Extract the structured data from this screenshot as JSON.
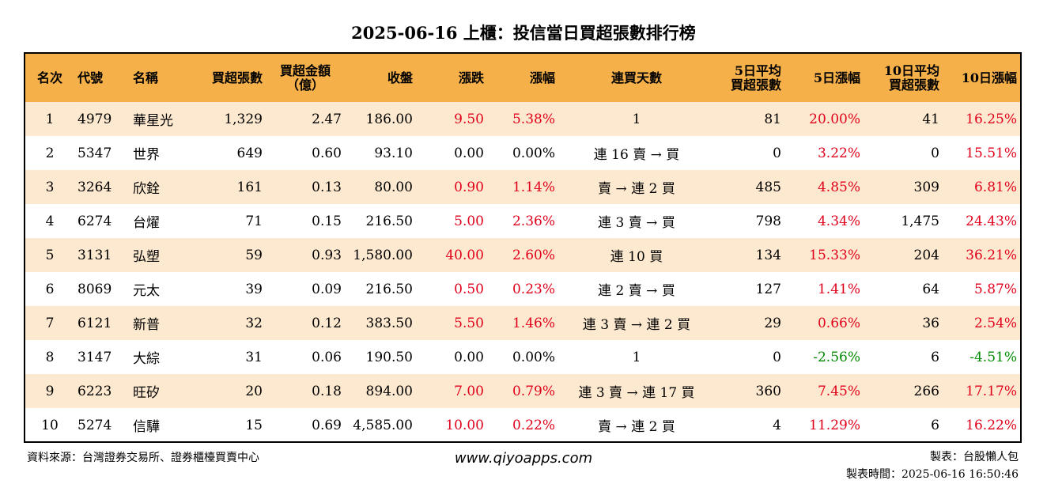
{
  "title": "2025-06-16 上櫃：投信當日買超張數排行榜",
  "headers": {
    "rank": "名次",
    "code": "代號",
    "name": "名稱",
    "volume": "買超張數",
    "amount_l1": "買超金額",
    "amount_l2": "（億）",
    "close": "收盤",
    "change": "漲跌",
    "pct": "漲幅",
    "days": "連買天數",
    "avg5_l1": "5日平均",
    "avg5_l2": "買超張數",
    "pct5": "5日漲幅",
    "avg10_l1": "10日平均",
    "avg10_l2": "買超張數",
    "pct10": "10日漲幅"
  },
  "rows": [
    {
      "rank": "1",
      "code": "4979",
      "name": "華星光",
      "volume": "1,329",
      "amount": "2.47",
      "close": "186.00",
      "change": "9.50",
      "pct": "5.38%",
      "days": "1",
      "avg5": "81",
      "pct5": "20.00%",
      "avg10": "41",
      "pct10": "16.25%",
      "c_change": "red",
      "c_pct": "red",
      "c_pct5": "red",
      "c_pct10": "red"
    },
    {
      "rank": "2",
      "code": "5347",
      "name": "世界",
      "volume": "649",
      "amount": "0.60",
      "close": "93.10",
      "change": "0.00",
      "pct": "0.00%",
      "days": "連 16 賣 → 買",
      "avg5": "0",
      "pct5": "3.22%",
      "avg10": "0",
      "pct10": "15.51%",
      "c_change": "black",
      "c_pct": "black",
      "c_pct5": "red",
      "c_pct10": "red"
    },
    {
      "rank": "3",
      "code": "3264",
      "name": "欣銓",
      "volume": "161",
      "amount": "0.13",
      "close": "80.00",
      "change": "0.90",
      "pct": "1.14%",
      "days": "賣 → 連 2 買",
      "avg5": "485",
      "pct5": "4.85%",
      "avg10": "309",
      "pct10": "6.81%",
      "c_change": "red",
      "c_pct": "red",
      "c_pct5": "red",
      "c_pct10": "red"
    },
    {
      "rank": "4",
      "code": "6274",
      "name": "台燿",
      "volume": "71",
      "amount": "0.15",
      "close": "216.50",
      "change": "5.00",
      "pct": "2.36%",
      "days": "連 3 賣 → 買",
      "avg5": "798",
      "pct5": "4.34%",
      "avg10": "1,475",
      "pct10": "24.43%",
      "c_change": "red",
      "c_pct": "red",
      "c_pct5": "red",
      "c_pct10": "red"
    },
    {
      "rank": "5",
      "code": "3131",
      "name": "弘塑",
      "volume": "59",
      "amount": "0.93",
      "close": "1,580.00",
      "change": "40.00",
      "pct": "2.60%",
      "days": "連 10 買",
      "avg5": "134",
      "pct5": "15.33%",
      "avg10": "204",
      "pct10": "36.21%",
      "c_change": "red",
      "c_pct": "red",
      "c_pct5": "red",
      "c_pct10": "red"
    },
    {
      "rank": "6",
      "code": "8069",
      "name": "元太",
      "volume": "39",
      "amount": "0.09",
      "close": "216.50",
      "change": "0.50",
      "pct": "0.23%",
      "days": "連 2 賣 → 買",
      "avg5": "127",
      "pct5": "1.41%",
      "avg10": "64",
      "pct10": "5.87%",
      "c_change": "red",
      "c_pct": "red",
      "c_pct5": "red",
      "c_pct10": "red"
    },
    {
      "rank": "7",
      "code": "6121",
      "name": "新普",
      "volume": "32",
      "amount": "0.12",
      "close": "383.50",
      "change": "5.50",
      "pct": "1.46%",
      "days": "連 3 賣 → 連 2 買",
      "avg5": "29",
      "pct5": "0.66%",
      "avg10": "36",
      "pct10": "2.54%",
      "c_change": "red",
      "c_pct": "red",
      "c_pct5": "red",
      "c_pct10": "red"
    },
    {
      "rank": "8",
      "code": "3147",
      "name": "大綜",
      "volume": "31",
      "amount": "0.06",
      "close": "190.50",
      "change": "0.00",
      "pct": "0.00%",
      "days": "1",
      "avg5": "0",
      "pct5": "-2.56%",
      "avg10": "6",
      "pct10": "-4.51%",
      "c_change": "black",
      "c_pct": "black",
      "c_pct5": "green",
      "c_pct10": "green"
    },
    {
      "rank": "9",
      "code": "6223",
      "name": "旺矽",
      "volume": "20",
      "amount": "0.18",
      "close": "894.00",
      "change": "7.00",
      "pct": "0.79%",
      "days": "連 3 賣 → 連 17 買",
      "avg5": "360",
      "pct5": "7.45%",
      "avg10": "266",
      "pct10": "17.17%",
      "c_change": "red",
      "c_pct": "red",
      "c_pct5": "red",
      "c_pct10": "red"
    },
    {
      "rank": "10",
      "code": "5274",
      "name": "信驊",
      "volume": "15",
      "amount": "0.69",
      "close": "4,585.00",
      "change": "10.00",
      "pct": "0.22%",
      "days": "賣 → 連 2 買",
      "avg5": "4",
      "pct5": "11.29%",
      "avg10": "6",
      "pct10": "16.22%",
      "c_change": "red",
      "c_pct": "red",
      "c_pct5": "red",
      "c_pct10": "red"
    }
  ],
  "footer": {
    "source": "資料來源：台灣證券交易所、證券櫃檯買賣中心",
    "website": "www.qiyoapps.com",
    "maker": "製表：台股懶人包",
    "time": "製表時間：2025-06-16 16:50:46"
  }
}
